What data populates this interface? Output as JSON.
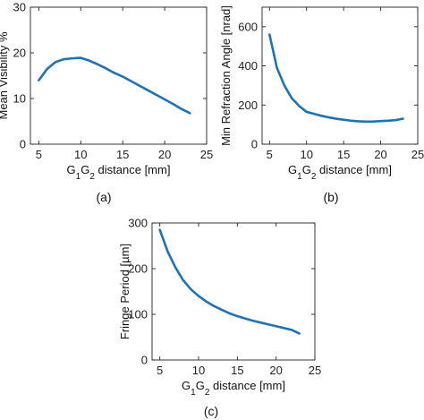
{
  "accent": "#1f72b8",
  "chart_data": [
    {
      "id": "a",
      "type": "line",
      "panel_label": "(a)",
      "xlabel": "G1G2 distance [mm]",
      "ylabel": "Mean Visibility %",
      "xlim": [
        4,
        25
      ],
      "ylim": [
        0,
        30
      ],
      "xticks": [
        5,
        10,
        15,
        20,
        25
      ],
      "yticks": [
        0,
        10,
        20,
        30
      ],
      "grid": false,
      "series": [
        {
          "color": "#1f72b8",
          "x": [
            5,
            6,
            7,
            8,
            9,
            10,
            11,
            12,
            13,
            14,
            15,
            16,
            17,
            18,
            19,
            20,
            21,
            22,
            23
          ],
          "y": [
            14,
            16.5,
            18,
            18.6,
            18.8,
            18.9,
            18.3,
            17.5,
            16.6,
            15.6,
            14.8,
            13.8,
            12.8,
            11.8,
            10.8,
            9.8,
            8.8,
            7.7,
            6.8
          ]
        }
      ]
    },
    {
      "id": "b",
      "type": "line",
      "panel_label": "(b)",
      "xlabel": "G1G2 distance [mm]",
      "ylabel": "Min Refraction Angle [nrad]",
      "xlim": [
        4,
        25
      ],
      "ylim": [
        0,
        700
      ],
      "xticks": [
        5,
        10,
        15,
        20,
        25
      ],
      "yticks": [
        0,
        200,
        400,
        600
      ],
      "grid": false,
      "series": [
        {
          "color": "#1f72b8",
          "x": [
            5,
            6,
            7,
            8,
            9,
            10,
            11,
            12,
            13,
            14,
            15,
            16,
            17,
            18,
            19,
            20,
            21,
            22,
            23
          ],
          "y": [
            560,
            390,
            300,
            235,
            195,
            165,
            155,
            145,
            137,
            130,
            125,
            120,
            117,
            115,
            116,
            118,
            120,
            123,
            130
          ]
        }
      ]
    },
    {
      "id": "c",
      "type": "line",
      "panel_label": "(c)",
      "xlabel": "G1G2 distance [mm]",
      "ylabel": "Fringe Period [µm]",
      "xlim": [
        4,
        25
      ],
      "ylim": [
        0,
        300
      ],
      "xticks": [
        5,
        10,
        15,
        20,
        25
      ],
      "yticks": [
        0,
        100,
        200,
        300
      ],
      "grid": false,
      "series": [
        {
          "color": "#1f72b8",
          "x": [
            5,
            6,
            7,
            8,
            9,
            10,
            11,
            12,
            13,
            14,
            15,
            16,
            17,
            18,
            19,
            20,
            21,
            22,
            23
          ],
          "y": [
            285,
            238,
            203,
            175,
            155,
            140,
            128,
            118,
            110,
            102,
            96,
            91,
            86,
            82,
            78,
            74,
            70,
            66,
            58
          ]
        }
      ]
    }
  ]
}
